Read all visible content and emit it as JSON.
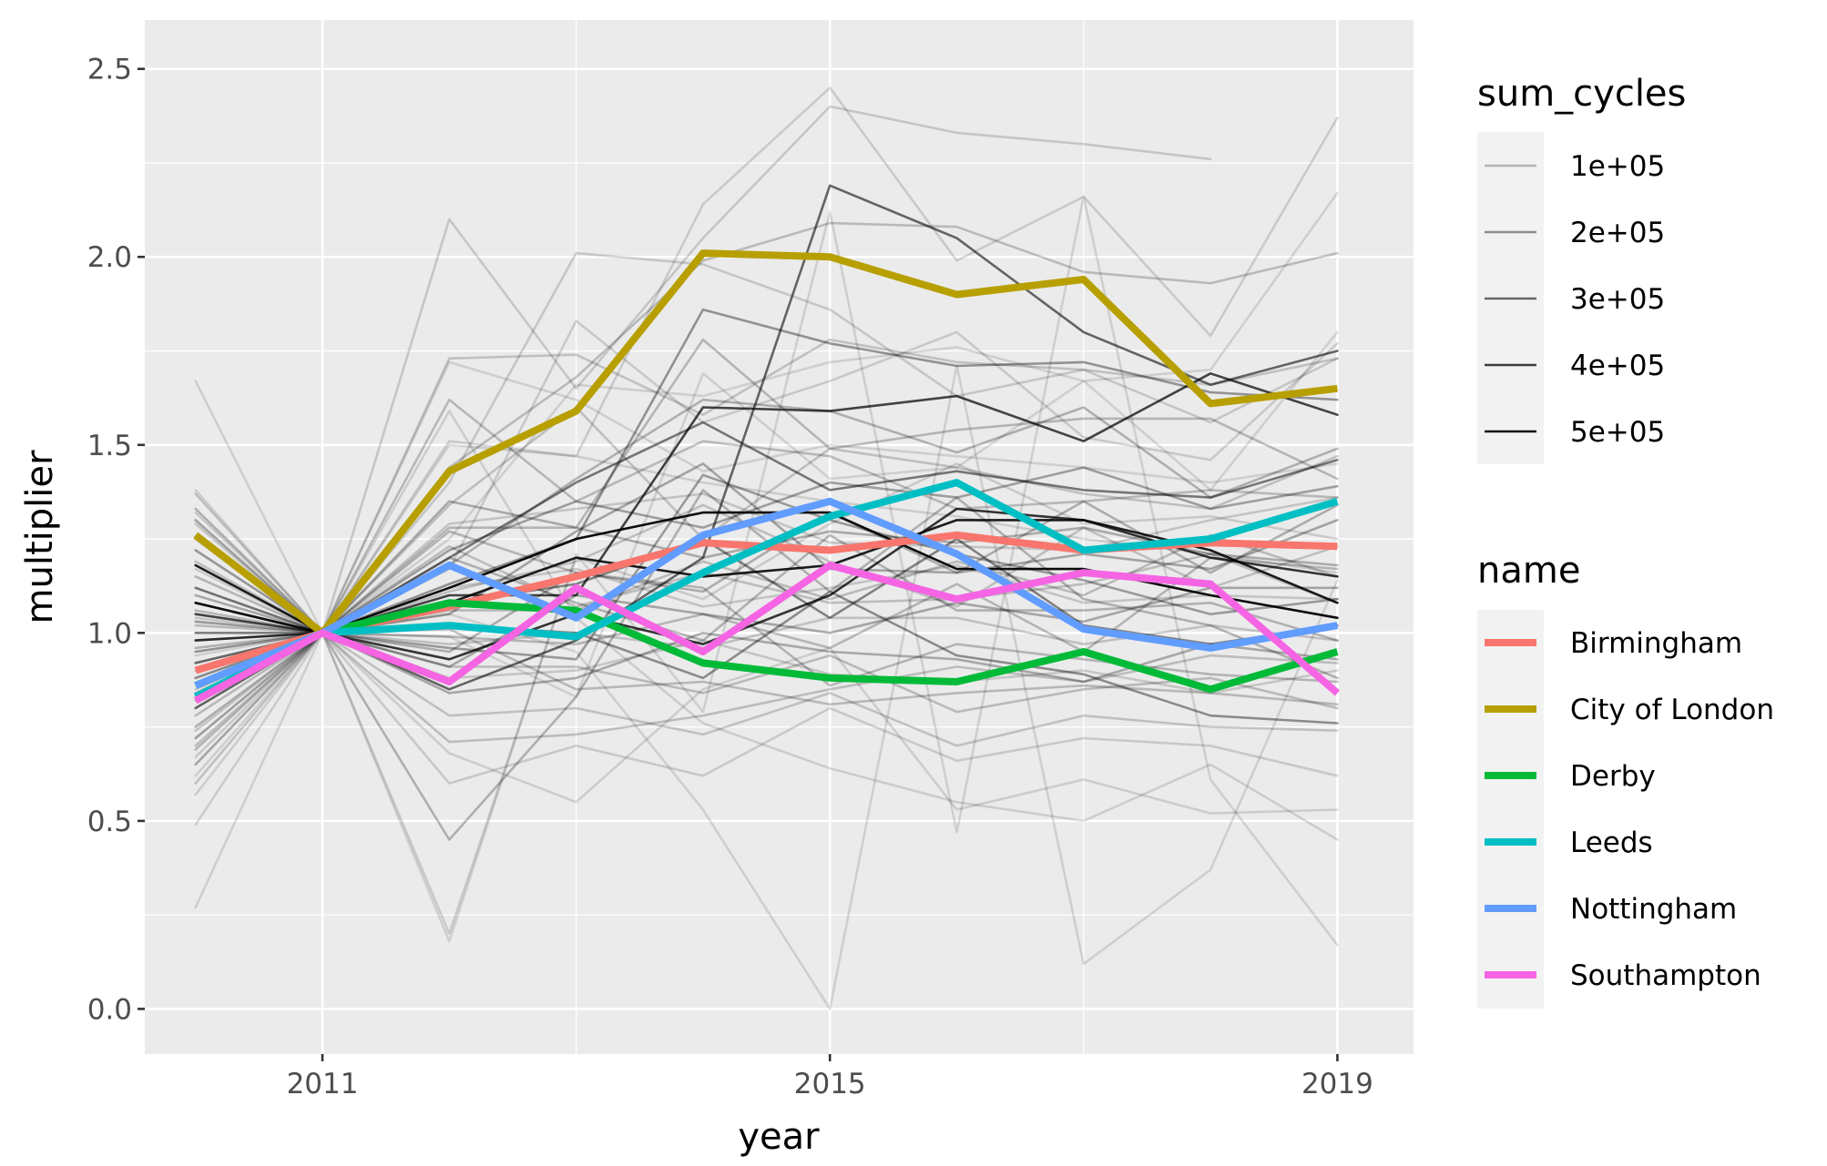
{
  "chart_data": {
    "type": "line",
    "xlabel": "year",
    "ylabel": "multiplier",
    "xlim": [
      2009.6,
      2019.6
    ],
    "ylim": [
      -0.12,
      2.63
    ],
    "x_ticks": [
      2011,
      2015,
      2019
    ],
    "x_tick_labels": [
      "2011",
      "2015",
      "2019"
    ],
    "x_minor_ticks": [
      2013,
      2017
    ],
    "y_ticks": [
      0.0,
      0.5,
      1.0,
      1.5,
      2.0,
      2.5
    ],
    "y_tick_labels": [
      "0.0",
      "0.5",
      "1.0",
      "1.5",
      "2.0",
      "2.5"
    ],
    "y_minor_ticks": [
      0.25,
      0.75,
      1.25,
      1.75,
      2.25
    ],
    "grid": true,
    "panel_background": "#ebebeb",
    "x": [
      2010,
      2011,
      2012,
      2013,
      2014,
      2015,
      2016,
      2017,
      2018,
      2019
    ],
    "highlighted_series": [
      {
        "name": "Birmingham",
        "color": "#F8766D",
        "values": [
          0.9,
          1.0,
          1.07,
          1.15,
          1.24,
          1.22,
          1.26,
          1.22,
          1.24,
          1.23
        ]
      },
      {
        "name": "City of London",
        "color": "#B79F00",
        "values": [
          1.26,
          1.0,
          1.43,
          1.59,
          2.01,
          2.0,
          1.9,
          1.94,
          1.61,
          1.65
        ]
      },
      {
        "name": "Derby",
        "color": "#00BA38",
        "values": [
          0.86,
          1.0,
          1.08,
          1.06,
          0.92,
          0.88,
          0.87,
          0.95,
          0.85,
          0.95
        ]
      },
      {
        "name": "Leeds",
        "color": "#00BFC4",
        "values": [
          0.83,
          1.0,
          1.02,
          0.99,
          1.16,
          1.31,
          1.4,
          1.22,
          1.25,
          1.35
        ]
      },
      {
        "name": "Nottingham",
        "color": "#619CFF",
        "values": [
          0.86,
          1.0,
          1.18,
          1.04,
          1.26,
          1.35,
          1.21,
          1.01,
          0.96,
          1.02
        ]
      },
      {
        "name": "Southampton",
        "color": "#F564E3",
        "values": [
          0.82,
          1.0,
          0.87,
          1.12,
          0.95,
          1.18,
          1.09,
          1.16,
          1.13,
          0.84
        ]
      }
    ],
    "background_series": [
      {
        "sum_cycles": 520000,
        "values": [
          1.08,
          1.0,
          1.12,
          1.25,
          1.32,
          1.32,
          1.17,
          1.17,
          1.1,
          1.04
        ]
      },
      {
        "sum_cycles": 480000,
        "values": [
          1.18,
          1.0,
          1.08,
          1.2,
          1.15,
          1.18,
          1.3,
          1.3,
          1.22,
          1.08
        ]
      },
      {
        "sum_cycles": 420000,
        "values": [
          0.98,
          1.0,
          0.93,
          1.05,
          0.97,
          1.1,
          1.33,
          1.3,
          1.2,
          1.15
        ]
      },
      {
        "sum_cycles": 380000,
        "values": [
          1.05,
          1.0,
          1.1,
          1.1,
          1.6,
          1.59,
          1.63,
          1.51,
          1.69,
          1.58
        ]
      },
      {
        "sum_cycles": 300000,
        "values": [
          0.8,
          1.0,
          0.85,
          0.98,
          1.2,
          2.19,
          2.05,
          1.8,
          1.66,
          1.75
        ]
      },
      {
        "sum_cycles": 250000,
        "values": [
          1.0,
          1.0,
          1.2,
          1.4,
          1.56,
          1.38,
          1.43,
          1.38,
          1.36,
          1.46
        ]
      },
      {
        "sum_cycles": 220000,
        "values": [
          0.92,
          1.0,
          1.08,
          1.13,
          1.25,
          1.04,
          1.25,
          1.02,
          0.97,
          1.02
        ]
      },
      {
        "sum_cycles": 200000,
        "values": [
          1.12,
          1.0,
          1.02,
          1.0,
          0.88,
          1.11,
          0.94,
          0.89,
          0.78,
          0.76
        ]
      },
      {
        "sum_cycles": 180000,
        "values": [
          0.95,
          1.0,
          1.13,
          1.25,
          1.86,
          1.77,
          1.71,
          1.72,
          1.64,
          1.62
        ]
      },
      {
        "sum_cycles": 160000,
        "values": [
          1.03,
          1.0,
          0.96,
          0.93,
          1.42,
          1.3,
          1.21,
          1.14,
          1.05,
          1.09
        ]
      },
      {
        "sum_cycles": 150000,
        "values": [
          0.72,
          1.0,
          1.22,
          1.35,
          1.28,
          1.4,
          1.36,
          1.44,
          1.33,
          1.39
        ]
      },
      {
        "sum_cycles": 140000,
        "values": [
          1.3,
          1.0,
          1.05,
          1.27,
          1.45,
          1.17,
          1.16,
          1.21,
          1.17,
          1.3
        ]
      },
      {
        "sum_cycles": 130000,
        "values": [
          0.65,
          1.0,
          0.91,
          1.1,
          1.05,
          1.0,
          1.08,
          1.03,
          1.12,
          1.12
        ]
      },
      {
        "sum_cycles": 125000,
        "values": [
          1.1,
          1.0,
          0.84,
          0.88,
          1.0,
          0.95,
          0.93,
          0.87,
          0.97,
          0.93
        ]
      },
      {
        "sum_cycles": 120000,
        "values": [
          0.88,
          1.0,
          1.35,
          1.28,
          1.2,
          1.27,
          1.24,
          1.28,
          1.21,
          1.18
        ]
      },
      {
        "sum_cycles": 115000,
        "values": [
          1.22,
          1.0,
          0.95,
          1.16,
          1.11,
          1.32,
          1.16,
          1.35,
          1.16,
          1.34
        ]
      },
      {
        "sum_cycles": 110000,
        "values": [
          0.75,
          1.0,
          0.45,
          0.83,
          1.38,
          1.11,
          1.36,
          1.09,
          1.02,
          0.88
        ]
      },
      {
        "sum_cycles": 105000,
        "values": [
          1.33,
          1.0,
          1.18,
          1.41,
          1.62,
          1.59,
          1.48,
          1.6,
          1.36,
          1.49
        ]
      },
      {
        "sum_cycles": 100000,
        "values": [
          0.96,
          1.0,
          1.2,
          1.08,
          0.98,
          1.26,
          1.06,
          1.06,
          1.08,
          0.98
        ]
      },
      {
        "sum_cycles": 95000,
        "values": [
          0.69,
          1.0,
          1.27,
          1.16,
          1.12,
          0.86,
          0.97,
          0.93,
          0.89,
          0.87
        ]
      },
      {
        "sum_cycles": 90000,
        "values": [
          1.15,
          1.0,
          1.28,
          1.28,
          1.78,
          1.49,
          1.54,
          1.57,
          1.57,
          1.41
        ]
      },
      {
        "sum_cycles": 88000,
        "values": [
          0.84,
          1.0,
          0.99,
          0.97,
          1.05,
          0.96,
          1.13,
          0.95,
          1.2,
          1.17
        ]
      },
      {
        "sum_cycles": 85000,
        "values": [
          1.06,
          1.0,
          1.01,
          0.85,
          0.87,
          0.81,
          0.84,
          0.86,
          0.84,
          0.81
        ]
      },
      {
        "sum_cycles": 82000,
        "values": [
          0.78,
          1.0,
          1.62,
          1.35,
          1.51,
          1.47,
          1.33,
          1.35,
          1.38,
          1.36
        ]
      },
      {
        "sum_cycles": 80000,
        "values": [
          1.25,
          1.0,
          1.06,
          1.06,
          1.19,
          1.09,
          1.19,
          1.1,
          1.26,
          1.15
        ]
      },
      {
        "sum_cycles": 78000,
        "values": [
          0.92,
          1.0,
          0.91,
          0.91,
          0.84,
          0.94,
          0.79,
          0.85,
          0.88,
          0.8
        ]
      },
      {
        "sum_cycles": 75000,
        "values": [
          1.02,
          1.0,
          1.44,
          1.68,
          1.99,
          2.09,
          2.08,
          1.96,
          1.93,
          2.01
        ]
      },
      {
        "sum_cycles": 72000,
        "values": [
          0.7,
          1.0,
          1.23,
          1.07,
          1.16,
          1.08,
          1.09,
          1.13,
          1.21,
          1.08
        ]
      },
      {
        "sum_cycles": 70000,
        "values": [
          1.19,
          1.0,
          0.71,
          0.73,
          0.78,
          0.85,
          0.91,
          0.87,
          0.94,
          0.92
        ]
      },
      {
        "sum_cycles": 68000,
        "values": [
          0.82,
          1.0,
          1.34,
          1.6,
          1.25,
          1.49,
          1.44,
          1.37,
          1.33,
          1.47
        ]
      },
      {
        "sum_cycles": 65000,
        "values": [
          1.37,
          1.0,
          1.11,
          1.19,
          1.34,
          1.19,
          1.07,
          1.28,
          1.12,
          1.23
        ]
      },
      {
        "sum_cycles": 62000,
        "values": [
          0.88,
          1.0,
          0.97,
          1.0,
          0.96,
          1.04,
          1.04,
          0.97,
          1.02,
          0.98
        ]
      },
      {
        "sum_cycles": 60000,
        "values": [
          0.6,
          1.0,
          1.73,
          1.74,
          1.58,
          1.78,
          1.72,
          1.7,
          1.66,
          1.73
        ]
      },
      {
        "sum_cycles": 58000,
        "values": [
          1.12,
          1.0,
          0.78,
          0.8,
          0.73,
          0.84,
          0.7,
          0.78,
          0.75,
          0.74
        ]
      },
      {
        "sum_cycles": 55000,
        "values": [
          0.98,
          1.0,
          1.29,
          1.33,
          1.37,
          1.24,
          1.23,
          1.22,
          1.3,
          1.36
        ]
      },
      {
        "sum_cycles": 52000,
        "values": [
          0.74,
          1.0,
          1.12,
          1.17,
          1.07,
          1.12,
          1.18,
          1.08,
          1.1,
          1.09
        ]
      },
      {
        "sum_cycles": 50000,
        "values": [
          1.29,
          1.0,
          2.1,
          1.65,
          2.05,
          2.4,
          2.33,
          2.3,
          2.26,
          null
        ]
      },
      {
        "sum_cycles": 48000,
        "values": [
          0.85,
          1.0,
          0.88,
          0.9,
          0.98,
          0.89,
          0.87,
          0.9,
          0.84,
          0.9
        ]
      },
      {
        "sum_cycles": 45000,
        "values": [
          1.04,
          1.0,
          1.4,
          2.01,
          1.98,
          1.86,
          1.63,
          1.7,
          1.56,
          1.73
        ]
      },
      {
        "sum_cycles": 42000,
        "values": [
          0.67,
          1.0,
          0.6,
          0.7,
          0.62,
          0.8,
          0.66,
          0.72,
          0.7,
          0.62
        ]
      },
      {
        "sum_cycles": 40000,
        "values": [
          1.32,
          1.0,
          1.17,
          1.83,
          1.56,
          1.67,
          1.8,
          1.52,
          1.46,
          1.77
        ]
      },
      {
        "sum_cycles": 38000,
        "values": [
          0.9,
          1.0,
          0.2,
          1.2,
          1.09,
          1.29,
          1.45,
          1.29,
          1.31,
          1.25
        ]
      },
      {
        "sum_cycles": 35000,
        "values": [
          1.17,
          1.0,
          1.51,
          1.47,
          2.14,
          2.45,
          1.99,
          2.16,
          1.79,
          2.37
        ]
      },
      {
        "sum_cycles": 32000,
        "values": [
          0.57,
          1.0,
          1.59,
          1.04,
          0.76,
          0.64,
          0.55,
          0.5,
          0.65,
          0.45
        ]
      },
      {
        "sum_cycles": 30000,
        "values": [
          1.38,
          1.0,
          0.68,
          0.55,
          0.85,
          0.96,
          0.53,
          0.61,
          0.52,
          0.53
        ]
      },
      {
        "sum_cycles": 28000,
        "values": [
          0.49,
          1.0,
          1.5,
          1.47,
          1.4,
          1.35,
          1.31,
          1.25,
          1.21,
          1.16
        ]
      },
      {
        "sum_cycles": 25000,
        "values": [
          1.67,
          1.0,
          1.25,
          1.66,
          1.63,
          1.72,
          1.76,
          1.67,
          1.7,
          2.17
        ]
      },
      {
        "sum_cycles": 22000,
        "values": [
          0.27,
          1.0,
          1.05,
          0.95,
          0.53,
          0.0,
          1.71,
          0.12,
          0.37,
          1.14
        ]
      },
      {
        "sum_cycles": 20000,
        "values": [
          0.94,
          1.0,
          0.18,
          1.21,
          0.79,
          2.12,
          0.47,
          2.16,
          0.61,
          0.17
        ]
      },
      {
        "sum_cycles": 18000,
        "values": [
          1.22,
          1.0,
          1.72,
          1.62,
          1.43,
          1.5,
          1.47,
          1.44,
          1.4,
          1.45
        ]
      },
      {
        "sum_cycles": 16000,
        "values": [
          0.62,
          1.0,
          0.99,
          0.83,
          1.69,
          1.41,
          1.44,
          1.67,
          1.38,
          1.8
        ]
      }
    ],
    "legend": {
      "placement": "right",
      "sum_cycles": {
        "title": "sum_cycles",
        "entries": [
          {
            "label": "1e+05",
            "value": 100000
          },
          {
            "label": "2e+05",
            "value": 200000
          },
          {
            "label": "3e+05",
            "value": 300000
          },
          {
            "label": "4e+05",
            "value": 400000
          },
          {
            "label": "5e+05",
            "value": 500000
          }
        ]
      },
      "name": {
        "title": "name",
        "entries": [
          {
            "label": "Birmingham",
            "color": "#F8766D"
          },
          {
            "label": "City of London",
            "color": "#B79F00"
          },
          {
            "label": "Derby",
            "color": "#00BA38"
          },
          {
            "label": "Leeds",
            "color": "#00BFC4"
          },
          {
            "label": "Nottingham",
            "color": "#619CFF"
          },
          {
            "label": "Southampton",
            "color": "#F564E3"
          }
        ]
      }
    }
  }
}
